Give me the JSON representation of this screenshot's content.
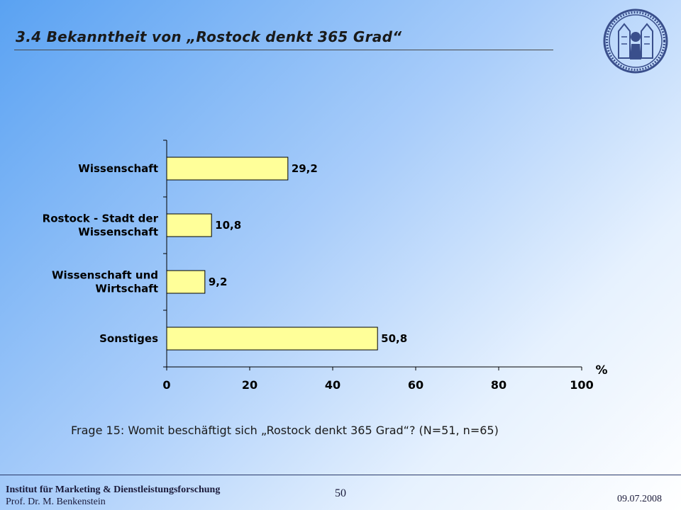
{
  "slide": {
    "title": "3.4 Bekanntheit von „Rostock denkt 365 Grad“",
    "question": "Frage 15: Womit beschäftigt sich „Rostock denkt 365 Grad“? (N=51, n=65)"
  },
  "footer": {
    "institute": "Institut für Marketing & Dienstleistungsforschung",
    "professor": "Prof. Dr. M. Benkenstein",
    "page_number": "50",
    "date": "09.07.2008"
  },
  "colors": {
    "bar_fill": "#ffff99",
    "bar_stroke": "#000000",
    "seal": "#3a4f8c"
  },
  "chart_data": {
    "type": "bar",
    "orientation": "horizontal",
    "categories": [
      [
        "Wissenschaft"
      ],
      [
        "Rostock - Stadt der",
        "Wissenschaft"
      ],
      [
        "Wissenschaft und",
        "Wirtschaft"
      ],
      [
        "Sonstiges"
      ]
    ],
    "values": [
      29.2,
      10.8,
      9.2,
      50.8
    ],
    "value_labels": [
      "29,2",
      "10,8",
      "9,2",
      "50,8"
    ],
    "xlim": [
      0,
      100
    ],
    "xticks": [
      0,
      20,
      40,
      60,
      80,
      100
    ],
    "xlabel": "%",
    "grid": false,
    "legend": "none"
  }
}
